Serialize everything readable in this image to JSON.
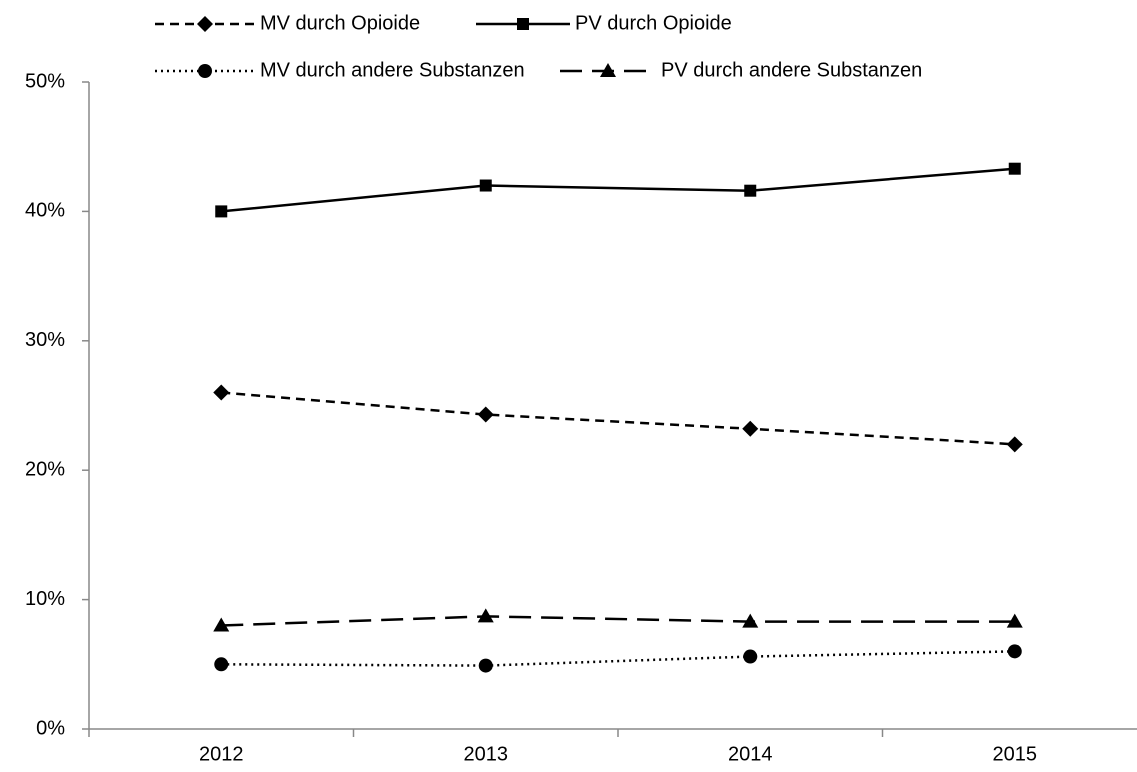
{
  "chart_data": {
    "type": "line",
    "categories": [
      "2012",
      "2013",
      "2014",
      "2015"
    ],
    "series": [
      {
        "name": "MV durch Opioide",
        "color": "#000000",
        "line_style": "dashed",
        "marker": "diamond",
        "values": [
          26.0,
          24.3,
          23.2,
          22.0
        ]
      },
      {
        "name": "PV durch Opioide",
        "color": "#000000",
        "line_style": "solid",
        "marker": "square",
        "values": [
          40.0,
          42.0,
          41.6,
          43.3
        ]
      },
      {
        "name": "MV durch andere Substanzen",
        "color": "#000000",
        "line_style": "dotted",
        "marker": "circle",
        "values": [
          5.0,
          4.9,
          5.6,
          6.0
        ]
      },
      {
        "name": "PV durch andere Substanzen",
        "color": "#000000",
        "line_style": "long-dashed",
        "marker": "triangle",
        "values": [
          8.0,
          8.7,
          8.3,
          8.3
        ]
      }
    ],
    "ylim": [
      0,
      50
    ],
    "yticks": [
      {
        "value": 0,
        "label": "0%"
      },
      {
        "value": 10,
        "label": "10%"
      },
      {
        "value": 20,
        "label": "20%"
      },
      {
        "value": 30,
        "label": "30%"
      },
      {
        "value": 40,
        "label": "40%"
      },
      {
        "value": 50,
        "label": "50%"
      }
    ],
    "grid": false,
    "legend": "top"
  }
}
